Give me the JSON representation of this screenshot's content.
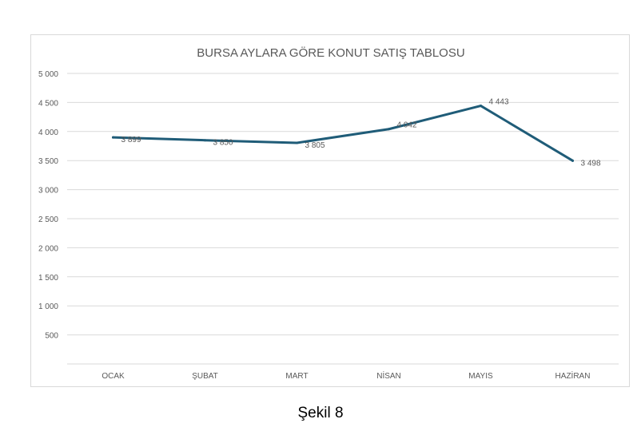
{
  "chart_data": {
    "type": "line",
    "title": "BURSA AYLARA GÖRE KONUT SATIŞ TABLOSU",
    "xlabel": "",
    "ylabel": "",
    "categories": [
      "OCAK",
      "ŞUBAT",
      "MART",
      "NİSAN",
      "MAYIS",
      "HAZİRAN"
    ],
    "series": [
      {
        "values": [
          3899,
          3850,
          3805,
          4042,
          4443,
          3498
        ]
      }
    ],
    "data_labels": [
      "3 899",
      "3 850",
      "3 805",
      "4 042",
      "4 443",
      "3 498"
    ],
    "yticks": [
      {
        "value": 500,
        "label": "500"
      },
      {
        "value": 1000,
        "label": "1 000"
      },
      {
        "value": 1500,
        "label": "1 500"
      },
      {
        "value": 2000,
        "label": "2 000"
      },
      {
        "value": 2500,
        "label": "2 500"
      },
      {
        "value": 3000,
        "label": "3 000"
      },
      {
        "value": 3500,
        "label": "3 500"
      },
      {
        "value": 4000,
        "label": "4 000"
      },
      {
        "value": 4500,
        "label": "4 500"
      },
      {
        "value": 5000,
        "label": "5 000"
      }
    ],
    "ylim": [
      0,
      5000
    ],
    "grid": true,
    "legend": "none",
    "colors": {
      "line": "#1f5c78",
      "grid": "#d9d9d9",
      "text": "#595959",
      "title": "#595959"
    }
  },
  "caption": "Şekil 8"
}
